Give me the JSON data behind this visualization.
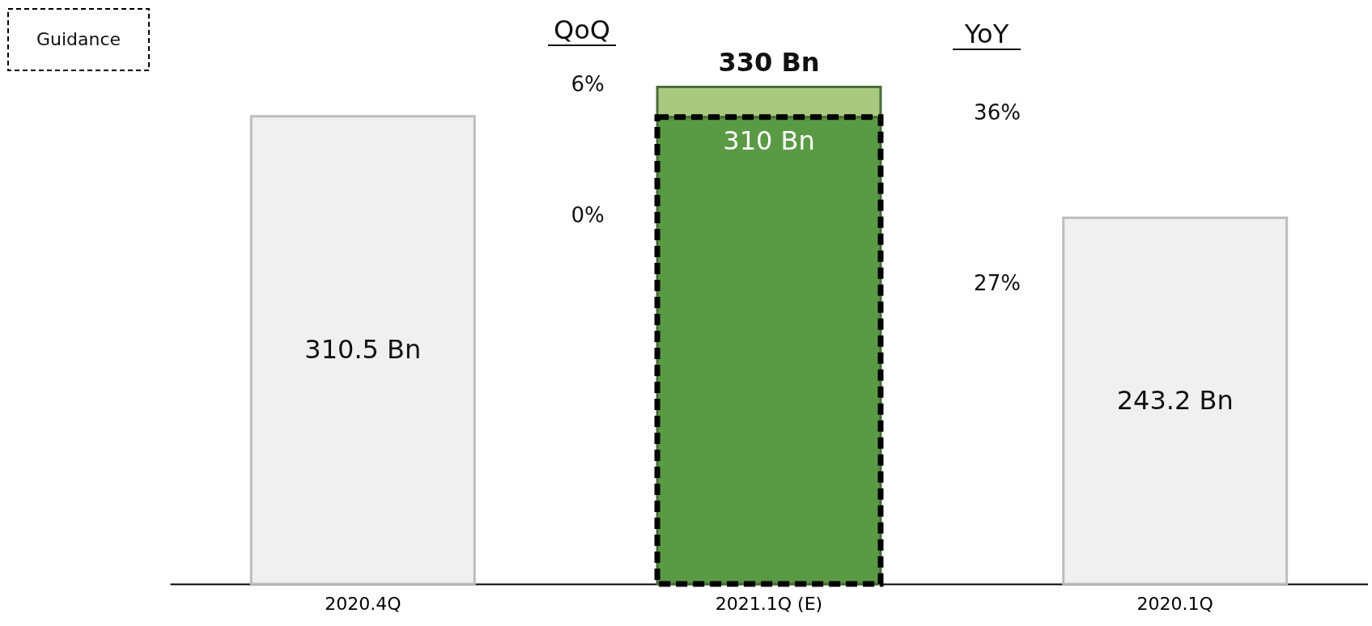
{
  "chart_data": {
    "type": "bar",
    "stacked": true,
    "categories": [
      "2020.4Q",
      "2021.1Q (E)",
      "2020.1Q"
    ],
    "series": [
      {
        "values": [
          310.5,
          310,
          243.2
        ],
        "colors": [
          "#f0f0f0",
          "#5a9a45",
          "#f0f0f0"
        ],
        "value_labels": [
          "310.5 Bn",
          "310 Bn",
          "243.2 Bn"
        ]
      },
      {
        "values": [
          null,
          20,
          null
        ],
        "color": "#a8c97f"
      }
    ],
    "totals": [
      null,
      "330 Bn",
      null
    ],
    "annotations": [
      "Guidance",
      "QoQ",
      "6%",
      "0%",
      "YoY",
      "36%",
      "27%"
    ]
  }
}
